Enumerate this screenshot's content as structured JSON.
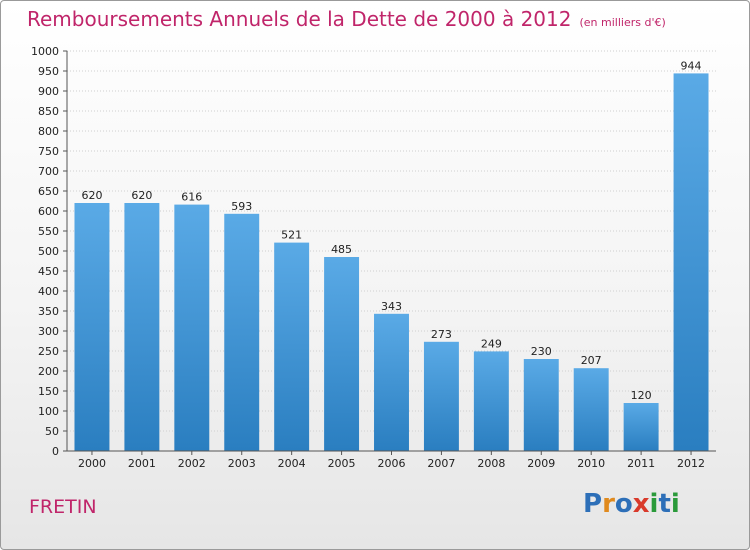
{
  "header": {
    "title": "Remboursements Annuels de la Dette de 2000 à 2012",
    "unit_note": "(en milliers d'€)"
  },
  "footer": {
    "commune": "FRETIN",
    "logo": "Proxiti"
  },
  "colors": {
    "title": "#c0256a",
    "bar_top": "#5aaae6",
    "bar_bottom": "#2a7ec0",
    "logo": [
      "#2d6fb8",
      "#e08a1e",
      "#2d6fb8",
      "#d93a2b",
      "#2a9a3a",
      "#2d6fb8",
      "#2a9a3a"
    ]
  },
  "chart_data": {
    "type": "bar",
    "title": "Remboursements Annuels de la Dette de 2000 à 2012",
    "subtitle": "(en milliers d'€)",
    "xlabel": "",
    "ylabel": "",
    "categories": [
      "2000",
      "2001",
      "2002",
      "2003",
      "2004",
      "2005",
      "2006",
      "2007",
      "2008",
      "2009",
      "2010",
      "2011",
      "2012"
    ],
    "values": [
      620,
      620,
      616,
      593,
      521,
      485,
      343,
      273,
      249,
      230,
      207,
      120,
      944
    ],
    "ylim": [
      0,
      1000
    ],
    "ytick_step": 50,
    "grid": true,
    "data_labels": true
  }
}
